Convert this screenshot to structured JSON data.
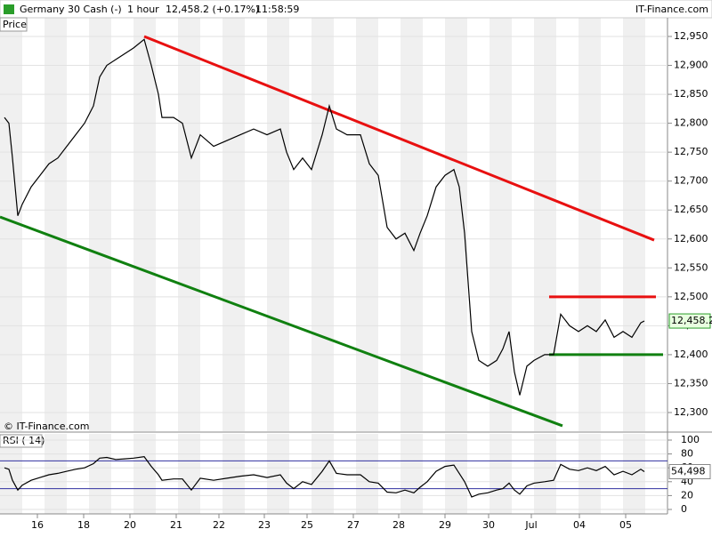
{
  "header": {
    "instrument": "Germany 30 Cash (-)",
    "interval": "1 hour",
    "quote": "12,458.2 (+0.17%)",
    "time": "11:58:59",
    "brand": "IT-Finance.com"
  },
  "watermark": "© IT-Finance.com",
  "chart_data": [
    {
      "type": "line",
      "title": "Price",
      "color": "#000000",
      "x": [
        0.1,
        0.2,
        0.28,
        0.4,
        0.5,
        0.7,
        0.9,
        1.1,
        1.3,
        1.5,
        1.7,
        1.9,
        2.1,
        2.24,
        2.4,
        2.6,
        2.8,
        3,
        3.24,
        3.4,
        3.56,
        3.64,
        3.9,
        4.1,
        4.3,
        4.5,
        4.8,
        5.1,
        5.4,
        5.7,
        6,
        6.3,
        6.44,
        6.6,
        6.8,
        7,
        7.24,
        7.4,
        7.56,
        7.8,
        8.1,
        8.3,
        8.5,
        8.7,
        8.9,
        9.1,
        9.3,
        9.44,
        9.6,
        9.8,
        10,
        10.2,
        10.32,
        10.44,
        10.6,
        10.76,
        10.96,
        11.16,
        11.3,
        11.44,
        11.56,
        11.68,
        11.84,
        12,
        12.24,
        12.44,
        12.6,
        12.8,
        13,
        13.2,
        13.4,
        13.6,
        13.8,
        14,
        14.2,
        14.4,
        14.48
      ],
      "values": [
        12810,
        12800,
        12740,
        12640,
        12660,
        12690,
        12710,
        12730,
        12740,
        12760,
        12780,
        12800,
        12830,
        12880,
        12900,
        12910,
        12920,
        12930,
        12945,
        12900,
        12850,
        12810,
        12810,
        12800,
        12740,
        12780,
        12760,
        12770,
        12780,
        12790,
        12780,
        12790,
        12750,
        12720,
        12740,
        12720,
        12780,
        12830,
        12790,
        12780,
        12780,
        12730,
        12710,
        12620,
        12600,
        12610,
        12580,
        12610,
        12640,
        12690,
        12710,
        12720,
        12690,
        12610,
        12440,
        12390,
        12380,
        12390,
        12410,
        12440,
        12370,
        12330,
        12380,
        12390,
        12400,
        12400,
        12470,
        12450,
        12440,
        12450,
        12440,
        12460,
        12430,
        12440,
        12430,
        12455,
        12458.2
      ],
      "last_value": 12458.2,
      "last_value_label": "12,458.2",
      "xlim": [
        0,
        15
      ],
      "xticks": [
        {
          "value": 0.84,
          "label": "16"
        },
        {
          "value": 1.88,
          "label": "18"
        },
        {
          "value": 2.92,
          "label": "20"
        },
        {
          "value": 3.96,
          "label": "21"
        },
        {
          "value": 4.92,
          "label": "22"
        },
        {
          "value": 5.94,
          "label": "23"
        },
        {
          "value": 6.9,
          "label": "25"
        },
        {
          "value": 7.94,
          "label": "27"
        },
        {
          "value": 8.96,
          "label": "28"
        },
        {
          "value": 10,
          "label": "29"
        },
        {
          "value": 10.98,
          "label": "30"
        },
        {
          "value": 11.94,
          "label": "Jul"
        },
        {
          "value": 13.02,
          "label": "04"
        },
        {
          "value": 14.06,
          "label": "05"
        }
      ],
      "ylim": [
        12300,
        12950
      ],
      "yticks": [
        {
          "value": 12300,
          "label": "12,300"
        },
        {
          "value": 12350,
          "label": "12,350"
        },
        {
          "value": 12400,
          "label": "12,400"
        },
        {
          "value": 12450,
          "label": "12,450"
        },
        {
          "value": 12500,
          "label": "12,500"
        },
        {
          "value": 12550,
          "label": "12,550"
        },
        {
          "value": 12600,
          "label": "12,600"
        },
        {
          "value": 12650,
          "label": "12,650"
        },
        {
          "value": 12700,
          "label": "12,700"
        },
        {
          "value": 12750,
          "label": "12,750"
        },
        {
          "value": 12800,
          "label": "12,800"
        },
        {
          "value": 12850,
          "label": "12,850"
        },
        {
          "value": 12900,
          "label": "12,900"
        },
        {
          "value": 12950,
          "label": "12,950"
        }
      ],
      "trendlines": [
        {
          "color": "#e81010",
          "x": [
            3.24,
            14.7
          ],
          "y": [
            12950,
            12598
          ]
        },
        {
          "color": "#108010",
          "x": [
            0,
            12.64
          ],
          "y": [
            12638,
            12277
          ]
        },
        {
          "color": "#e81010",
          "x": [
            12.34,
            14.74
          ],
          "y": [
            12500,
            12500
          ]
        },
        {
          "color": "#108010",
          "x": [
            12.34,
            14.9
          ],
          "y": [
            12400,
            12400
          ]
        }
      ]
    },
    {
      "type": "line",
      "title": "RSI ( 14)",
      "color": "#000000",
      "x": [
        0.1,
        0.2,
        0.28,
        0.4,
        0.5,
        0.7,
        0.9,
        1.1,
        1.3,
        1.5,
        1.7,
        1.9,
        2.1,
        2.24,
        2.4,
        2.6,
        2.8,
        3,
        3.24,
        3.4,
        3.56,
        3.64,
        3.9,
        4.1,
        4.3,
        4.5,
        4.8,
        5.1,
        5.4,
        5.7,
        6,
        6.3,
        6.44,
        6.6,
        6.8,
        7,
        7.24,
        7.4,
        7.56,
        7.8,
        8.1,
        8.3,
        8.5,
        8.7,
        8.9,
        9.1,
        9.3,
        9.44,
        9.6,
        9.8,
        10,
        10.2,
        10.32,
        10.44,
        10.6,
        10.76,
        10.96,
        11.16,
        11.3,
        11.44,
        11.56,
        11.68,
        11.84,
        12,
        12.24,
        12.44,
        12.6,
        12.8,
        13,
        13.2,
        13.4,
        13.6,
        13.8,
        14,
        14.2,
        14.4,
        14.48
      ],
      "values": [
        60,
        58,
        42,
        28,
        35,
        42,
        46,
        50,
        52,
        55,
        58,
        60,
        66,
        74,
        75,
        72,
        73,
        74,
        76,
        62,
        50,
        42,
        44,
        44,
        28,
        45,
        42,
        45,
        48,
        50,
        46,
        50,
        38,
        30,
        40,
        36,
        55,
        70,
        52,
        50,
        50,
        40,
        38,
        25,
        24,
        28,
        24,
        32,
        40,
        55,
        62,
        64,
        52,
        40,
        18,
        22,
        24,
        28,
        30,
        38,
        28,
        22,
        34,
        38,
        40,
        42,
        65,
        58,
        56,
        60,
        56,
        62,
        50,
        55,
        50,
        58,
        54.498
      ],
      "last_value": 54.498,
      "last_value_label": "54,498",
      "xlim": [
        0,
        15
      ],
      "ylim": [
        0,
        100
      ],
      "yticks": [
        0,
        20,
        40,
        60,
        80,
        100
      ],
      "levels": [
        30,
        70
      ],
      "level_color": "#3030a0"
    }
  ]
}
